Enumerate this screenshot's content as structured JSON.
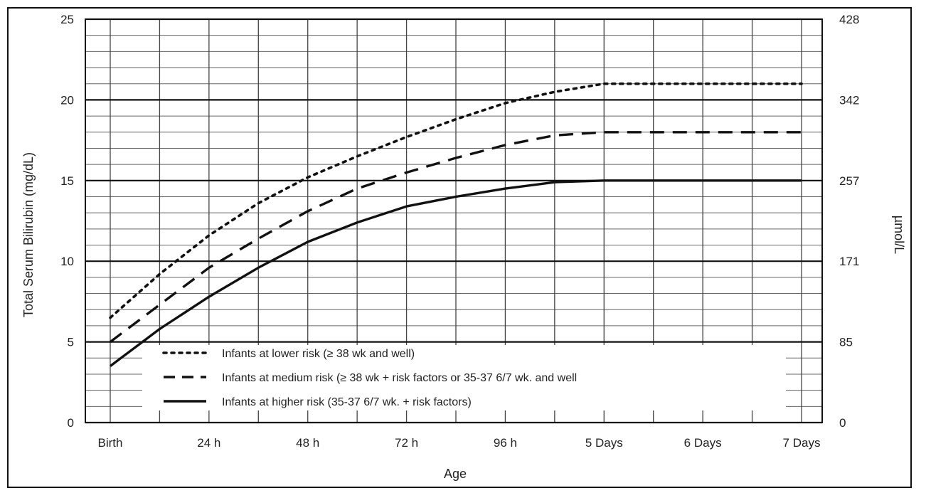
{
  "chart_data": {
    "type": "line",
    "title": "",
    "xlabel": "Age",
    "ylabel": "Total Serum Bilirubin (mg/dL)",
    "y2label": "µmol/L",
    "ylim": [
      0,
      25
    ],
    "xlim": [
      0,
      168
    ],
    "x_ticks": [
      {
        "value": 0,
        "label": "Birth"
      },
      {
        "value": 24,
        "label": "24 h"
      },
      {
        "value": 48,
        "label": "48 h"
      },
      {
        "value": 72,
        "label": "72 h"
      },
      {
        "value": 96,
        "label": "96 h"
      },
      {
        "value": 120,
        "label": "5 Days"
      },
      {
        "value": 144,
        "label": "6 Days"
      },
      {
        "value": 168,
        "label": "7 Days"
      }
    ],
    "y_ticks": [
      {
        "value": 0,
        "label": "0"
      },
      {
        "value": 5,
        "label": "5"
      },
      {
        "value": 10,
        "label": "10"
      },
      {
        "value": 15,
        "label": "15"
      },
      {
        "value": 20,
        "label": "20"
      },
      {
        "value": 25,
        "label": "25"
      }
    ],
    "y2_ticks": [
      {
        "value": 0,
        "label": "0"
      },
      {
        "value": 5,
        "label": "85"
      },
      {
        "value": 10,
        "label": "171"
      },
      {
        "value": 15,
        "label": "257"
      },
      {
        "value": 20,
        "label": "342"
      },
      {
        "value": 25,
        "label": "428"
      }
    ],
    "grid": true,
    "legend_position": "bottom-center",
    "series": [
      {
        "name": "Infants at lower risk (≥ 38 wk and well)",
        "style": "dotted",
        "x": [
          0,
          12,
          24,
          36,
          48,
          60,
          72,
          84,
          96,
          108,
          120,
          132,
          144,
          156,
          168
        ],
        "y": [
          6.5,
          9.2,
          11.6,
          13.6,
          15.2,
          16.5,
          17.7,
          18.8,
          19.8,
          20.5,
          21.0,
          21.0,
          21.0,
          21.0,
          21.0
        ]
      },
      {
        "name": "Infants at medium risk (≥ 38 wk + risk factors or 35-37 6/7 wk. and well",
        "style": "dashed",
        "x": [
          0,
          12,
          24,
          36,
          48,
          60,
          72,
          84,
          96,
          108,
          120,
          132,
          144,
          156,
          168
        ],
        "y": [
          5.0,
          7.3,
          9.6,
          11.4,
          13.1,
          14.5,
          15.5,
          16.4,
          17.2,
          17.8,
          18.0,
          18.0,
          18.0,
          18.0,
          18.0
        ]
      },
      {
        "name": "Infants at higher risk (35-37 6/7 wk. + risk factors)",
        "style": "solid",
        "x": [
          0,
          12,
          24,
          36,
          48,
          60,
          72,
          84,
          96,
          108,
          120,
          132,
          144,
          156,
          168
        ],
        "y": [
          3.5,
          5.8,
          7.8,
          9.6,
          11.2,
          12.4,
          13.4,
          14.0,
          14.5,
          14.9,
          15.0,
          15.0,
          15.0,
          15.0,
          15.0
        ]
      }
    ]
  }
}
